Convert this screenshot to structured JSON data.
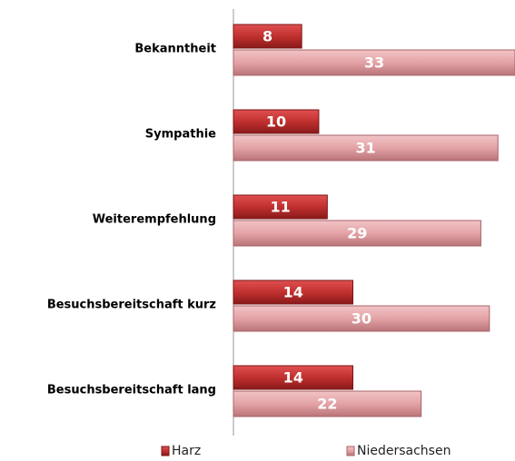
{
  "chart_data": {
    "type": "bar",
    "orientation": "horizontal",
    "categories": [
      "Bekanntheit",
      "Sympathie",
      "Weiterempfehlung",
      "Besuchsbereitschaft kurz",
      "Besuchsbereitschaft lang"
    ],
    "series": [
      {
        "name": "Harz",
        "color": "#c0302f",
        "values": [
          8,
          10,
          11,
          14,
          14
        ]
      },
      {
        "name": "Niedersachsen",
        "color": "#e3a3a6",
        "values": [
          33,
          31,
          29,
          30,
          22
        ]
      }
    ]
  }
}
